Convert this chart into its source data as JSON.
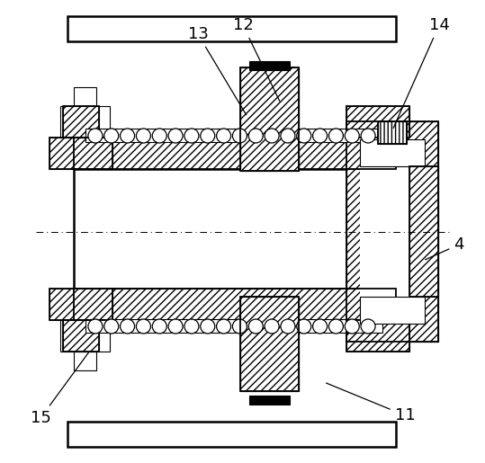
{
  "bg_color": "#ffffff",
  "line_color": "#000000",
  "lw_thin": 0.8,
  "lw_main": 1.3,
  "lw_thick": 1.8,
  "label_fontsize": 13
}
